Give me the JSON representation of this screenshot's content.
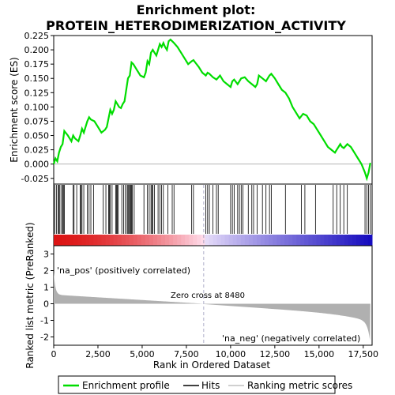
{
  "chart_data": {
    "type": "line",
    "title_line1": "Enrichment plot:",
    "title_line2": "PROTEIN_HETERODIMERIZATION_ACTIVITY",
    "es_panel": {
      "ylabel": "Enrichment score (ES)",
      "ylim": [
        -0.035,
        0.225
      ],
      "yticks": [
        "0.225",
        "0.200",
        "0.175",
        "0.150",
        "0.125",
        "0.100",
        "0.075",
        "0.050",
        "0.025",
        "0.000",
        "-0.025"
      ],
      "ytick_values": [
        0.225,
        0.2,
        0.175,
        0.15,
        0.125,
        0.1,
        0.075,
        0.05,
        0.025,
        0.0,
        -0.025
      ],
      "series": [
        {
          "name": "Enrichment profile",
          "color": "#00dd00",
          "x": [
            0,
            100,
            200,
            300,
            400,
            500,
            600,
            800,
            1000,
            1100,
            1200,
            1400,
            1500,
            1600,
            1700,
            1800,
            1900,
            2000,
            2100,
            2300,
            2500,
            2700,
            2900,
            3000,
            3100,
            3200,
            3300,
            3400,
            3500,
            3600,
            3700,
            3800,
            3900,
            4000,
            4100,
            4200,
            4300,
            4400,
            4500,
            4700,
            4900,
            5100,
            5200,
            5300,
            5400,
            5500,
            5600,
            5700,
            5800,
            5900,
            6000,
            6100,
            6200,
            6300,
            6400,
            6500,
            6600,
            6700,
            6800,
            7000,
            7200,
            7400,
            7600,
            7800,
            7900,
            8000,
            8200,
            8400,
            8600,
            8700,
            8800,
            9000,
            9200,
            9400,
            9600,
            9800,
            10000,
            10100,
            10200,
            10400,
            10600,
            10800,
            11000,
            11200,
            11400,
            11500,
            11600,
            11800,
            12000,
            12200,
            12300,
            12500,
            12700,
            12900,
            13100,
            13300,
            13500,
            13700,
            13900,
            14100,
            14300,
            14500,
            14700,
            14900,
            15100,
            15300,
            15500,
            15700,
            15900,
            16000,
            16100,
            16200,
            16300,
            16400,
            16600,
            16800,
            17000,
            17200,
            17400,
            17600,
            17700,
            17800,
            17900
          ],
          "y": [
            0.0,
            0.01,
            0.005,
            0.02,
            0.03,
            0.035,
            0.058,
            0.05,
            0.04,
            0.05,
            0.045,
            0.04,
            0.05,
            0.062,
            0.055,
            0.065,
            0.075,
            0.082,
            0.078,
            0.075,
            0.065,
            0.055,
            0.06,
            0.065,
            0.08,
            0.095,
            0.088,
            0.095,
            0.11,
            0.105,
            0.1,
            0.098,
            0.105,
            0.11,
            0.13,
            0.15,
            0.155,
            0.178,
            0.175,
            0.165,
            0.155,
            0.152,
            0.16,
            0.18,
            0.175,
            0.195,
            0.2,
            0.195,
            0.19,
            0.2,
            0.21,
            0.205,
            0.212,
            0.205,
            0.2,
            0.215,
            0.218,
            0.215,
            0.212,
            0.205,
            0.195,
            0.185,
            0.175,
            0.18,
            0.182,
            0.178,
            0.17,
            0.16,
            0.155,
            0.16,
            0.158,
            0.152,
            0.148,
            0.155,
            0.145,
            0.14,
            0.135,
            0.145,
            0.148,
            0.14,
            0.15,
            0.152,
            0.145,
            0.14,
            0.135,
            0.14,
            0.155,
            0.15,
            0.145,
            0.155,
            0.158,
            0.15,
            0.14,
            0.13,
            0.125,
            0.115,
            0.1,
            0.09,
            0.08,
            0.088,
            0.085,
            0.075,
            0.07,
            0.06,
            0.05,
            0.04,
            0.03,
            0.025,
            0.02,
            0.025,
            0.03,
            0.035,
            0.03,
            0.028,
            0.035,
            0.03,
            0.02,
            0.01,
            0.0,
            -0.015,
            -0.025,
            -0.015,
            0.002
          ]
        }
      ]
    },
    "hits": [
      50,
      150,
      250,
      300,
      350,
      450,
      500,
      550,
      600,
      1100,
      1150,
      1300,
      1500,
      1550,
      1600,
      1700,
      1900,
      2000,
      2100,
      2250,
      2800,
      2950,
      3100,
      3150,
      3200,
      3300,
      3500,
      3550,
      3600,
      3650,
      3850,
      3950,
      4050,
      4150,
      4200,
      4250,
      4300,
      4350,
      4400,
      4450,
      4550,
      5100,
      5300,
      5400,
      5500,
      5550,
      5600,
      5700,
      5900,
      6000,
      6100,
      6200,
      6450,
      6700,
      6800,
      7800,
      7900,
      8600,
      8700,
      8800,
      9000,
      9200,
      9300,
      10000,
      10100,
      10200,
      10400,
      10500,
      10600,
      10700,
      11000,
      11200,
      11300,
      11500,
      11800,
      12000,
      12200,
      12300,
      13100,
      14000,
      14200,
      14800,
      15800,
      16000,
      16200,
      16400,
      16600,
      17600,
      17700,
      17800,
      17900
    ],
    "metric_panel": {
      "ylabel": "Ranked list metric (PreRanked)",
      "ylim": [
        -2.5,
        3.5
      ],
      "yticks": [
        "3",
        "2",
        "1",
        "0",
        "-1",
        "-2"
      ],
      "ytick_values": [
        3,
        2,
        1,
        0,
        -1,
        -2
      ],
      "xlabel": "Rank in Ordered Dataset",
      "xlim": [
        0,
        18000
      ],
      "xticks": [
        "0",
        "2,500",
        "5,000",
        "7,500",
        "10,000",
        "12,500",
        "15,000",
        "17,500"
      ],
      "xtick_values": [
        0,
        2500,
        5000,
        7500,
        10000,
        12500,
        15000,
        17500
      ],
      "zero_cross_label": "Zero cross at 8480",
      "zero_cross": 8480,
      "pos_label": "'na_pos' (positively correlated)",
      "neg_label": "'na_neg' (negatively correlated)",
      "n_genes": 17900,
      "metric_start": 1.9,
      "metric_end": -2.4
    },
    "legend": {
      "items": [
        {
          "label": "Enrichment profile",
          "color": "#00dd00"
        },
        {
          "label": "Hits",
          "color": "#000000"
        },
        {
          "label": "Ranking metric scores",
          "color": "#c0c0c0"
        }
      ]
    },
    "colors": {
      "pos_text": "#dd0000",
      "neg_text": "#0000cc",
      "metric_fill": "#b0b0b0",
      "zero_line": "#9999bb"
    }
  }
}
